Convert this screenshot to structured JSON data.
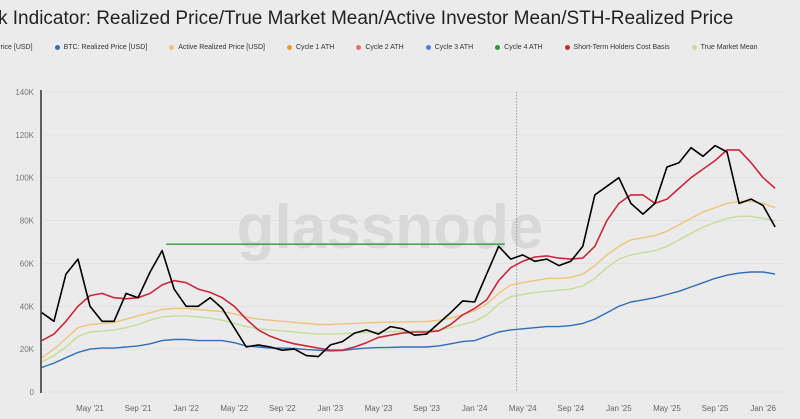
{
  "title": "k Indicator: Realized Price/True Market Mean/Active Investor Mean/STH-Realized Price",
  "watermark": "glassnode",
  "chart_data": {
    "type": "line",
    "title": "k Indicator: Realized Price/True Market Mean/Active Investor Mean/STH-Realized Price",
    "ylim": [
      0,
      140000
    ],
    "y_ticks": [
      "0",
      "20K",
      "40K",
      "60K",
      "80K",
      "100K",
      "120K",
      "140K"
    ],
    "y_tick_values": [
      0,
      20000,
      40000,
      60000,
      80000,
      100000,
      120000,
      140000
    ],
    "x_ticks": [
      "May '21",
      "Sep '21",
      "Jan '22",
      "May '22",
      "Sep '22",
      "Jan '23",
      "May '23",
      "Sep '23",
      "Jan '24",
      "May '24",
      "Sep '24",
      "Jan '25",
      "May '25",
      "Sep '25",
      "Jan '26"
    ],
    "x_tick_dates": [
      "2021-05",
      "2021-09",
      "2022-01",
      "2022-05",
      "2022-09",
      "2023-01",
      "2023-05",
      "2023-09",
      "2024-01",
      "2024-05",
      "2024-09",
      "2025-01",
      "2025-05",
      "2025-09",
      "2026-01"
    ],
    "grid": true,
    "legend": "top",
    "marker_line_date": "2024-04",
    "x": [
      "2021-01",
      "2021-02",
      "2021-03",
      "2021-04",
      "2021-05",
      "2021-06",
      "2021-07",
      "2021-08",
      "2021-09",
      "2021-10",
      "2021-11",
      "2021-12",
      "2022-01",
      "2022-02",
      "2022-03",
      "2022-04",
      "2022-05",
      "2022-06",
      "2022-07",
      "2022-08",
      "2022-09",
      "2022-10",
      "2022-11",
      "2022-12",
      "2023-01",
      "2023-02",
      "2023-03",
      "2023-04",
      "2023-05",
      "2023-06",
      "2023-07",
      "2023-08",
      "2023-09",
      "2023-10",
      "2023-11",
      "2023-12",
      "2024-01",
      "2024-02",
      "2024-03",
      "2024-04",
      "2024-05",
      "2024-06",
      "2024-07",
      "2024-08",
      "2024-09",
      "2024-10",
      "2024-11",
      "2024-12",
      "2025-01",
      "2025-02",
      "2025-03",
      "2025-04",
      "2025-05",
      "2025-06",
      "2025-07",
      "2025-08",
      "2025-09",
      "2025-10",
      "2025-11",
      "2025-12",
      "2026-01",
      "2026-02"
    ],
    "series": [
      {
        "name": "Price [USD]",
        "color": "#000000",
        "width": 1.6,
        "values": [
          37000,
          33000,
          55000,
          62000,
          40000,
          33000,
          33000,
          46000,
          44000,
          56000,
          66000,
          48000,
          40000,
          40000,
          44000,
          39000,
          30000,
          21000,
          22000,
          21000,
          19500,
          20000,
          17000,
          16500,
          22000,
          23500,
          27500,
          29000,
          27000,
          30500,
          29500,
          26500,
          27000,
          32000,
          37000,
          42500,
          42000,
          55000,
          68000,
          62000,
          64000,
          61000,
          62000,
          59000,
          61000,
          68000,
          92000,
          96000,
          100000,
          88000,
          83000,
          88000,
          105000,
          107000,
          114000,
          110000,
          115000,
          112000,
          88000,
          90000,
          87000,
          77000
        ]
      },
      {
        "name": "BTC: Realized Price [USD]",
        "color": "#2f6fb8",
        "width": 1.4,
        "values": [
          11500,
          13500,
          16000,
          18500,
          20000,
          20500,
          20500,
          21000,
          21500,
          22500,
          24000,
          24500,
          24500,
          24000,
          24000,
          24000,
          23000,
          21500,
          21000,
          20500,
          20500,
          20300,
          19800,
          19500,
          19200,
          19300,
          20000,
          20500,
          20700,
          20800,
          21000,
          21000,
          21000,
          21500,
          22500,
          23500,
          24000,
          26000,
          28000,
          29000,
          29500,
          30000,
          30500,
          30500,
          31000,
          32000,
          34000,
          37000,
          40000,
          42000,
          43000,
          44000,
          45500,
          47000,
          49000,
          51000,
          53000,
          54500,
          55500,
          56000,
          56000,
          55000
        ]
      },
      {
        "name": "Active Realized Price [USD]",
        "color": "#f2c27a",
        "width": 1.4,
        "values": [
          16000,
          20000,
          25000,
          30000,
          31500,
          32000,
          32500,
          34000,
          35500,
          37000,
          38500,
          39000,
          39000,
          38500,
          38000,
          37500,
          36500,
          35000,
          34000,
          33500,
          33000,
          32500,
          32000,
          31500,
          31500,
          31800,
          32000,
          32300,
          32500,
          32600,
          32700,
          32800,
          32900,
          33500,
          34500,
          36000,
          38000,
          41000,
          46000,
          50000,
          51000,
          52000,
          53000,
          53000,
          53500,
          55000,
          59000,
          64000,
          68000,
          71000,
          72000,
          73000,
          75000,
          78000,
          81000,
          84000,
          86000,
          88000,
          89000,
          89000,
          88000,
          86000
        ]
      },
      {
        "name": "Cycle 4 ATH",
        "color": "#2e9a3c",
        "width": 1.4,
        "ath": true,
        "value": 69000,
        "start": "2021-11",
        "end": "2024-03"
      },
      {
        "name": "Short-Term Holders Cost Basis",
        "color": "#c9283b",
        "width": 1.6,
        "values": [
          24000,
          27000,
          33000,
          40000,
          45000,
          46000,
          44000,
          43500,
          44000,
          46000,
          50000,
          52000,
          51000,
          48000,
          46500,
          44000,
          40000,
          34000,
          29000,
          26000,
          24000,
          22500,
          21500,
          20500,
          19500,
          19500,
          21000,
          23000,
          25500,
          26500,
          27500,
          28000,
          28000,
          28500,
          31500,
          36000,
          39000,
          43000,
          52000,
          58000,
          61000,
          63000,
          63500,
          62500,
          62000,
          62500,
          68000,
          80000,
          88000,
          92000,
          92000,
          88000,
          90000,
          95000,
          100000,
          104000,
          108000,
          113000,
          113000,
          107000,
          100000,
          95000
        ]
      },
      {
        "name": "True Market Mean",
        "color": "#c6dc96",
        "width": 1.4,
        "values": [
          14000,
          17000,
          21000,
          26000,
          28000,
          28500,
          29000,
          30000,
          31500,
          33500,
          35000,
          35500,
          35500,
          35000,
          34500,
          33500,
          32000,
          30500,
          29500,
          29000,
          28500,
          28000,
          27500,
          27000,
          27000,
          27200,
          27500,
          27800,
          28000,
          28200,
          28300,
          28400,
          28500,
          29000,
          30000,
          31500,
          33000,
          36000,
          41000,
          44500,
          45500,
          46500,
          47000,
          47500,
          48000,
          49500,
          53000,
          58000,
          62000,
          64000,
          65000,
          66000,
          68000,
          71000,
          74000,
          77000,
          79000,
          81000,
          82000,
          82000,
          81000,
          80000
        ]
      }
    ],
    "legend_entries": [
      {
        "label": "Price [USD]",
        "color": "#000000"
      },
      {
        "label": "BTC: Realized Price [USD]",
        "color": "#2f6fb8"
      },
      {
        "label": "Active Realized Price [USD]",
        "color": "#f2c27a"
      },
      {
        "label": "Cycle 1 ATH",
        "color": "#f39a2c"
      },
      {
        "label": "Cycle 2 ATH",
        "color": "#ef6d6d"
      },
      {
        "label": "Cycle 3 ATH",
        "color": "#4f7fe0"
      },
      {
        "label": "Cycle 4 ATH",
        "color": "#2e9a3c"
      },
      {
        "label": "Short-Term Holders Cost Basis",
        "color": "#c9283b"
      },
      {
        "label": "True Market Mean",
        "color": "#c6dc96"
      }
    ]
  }
}
